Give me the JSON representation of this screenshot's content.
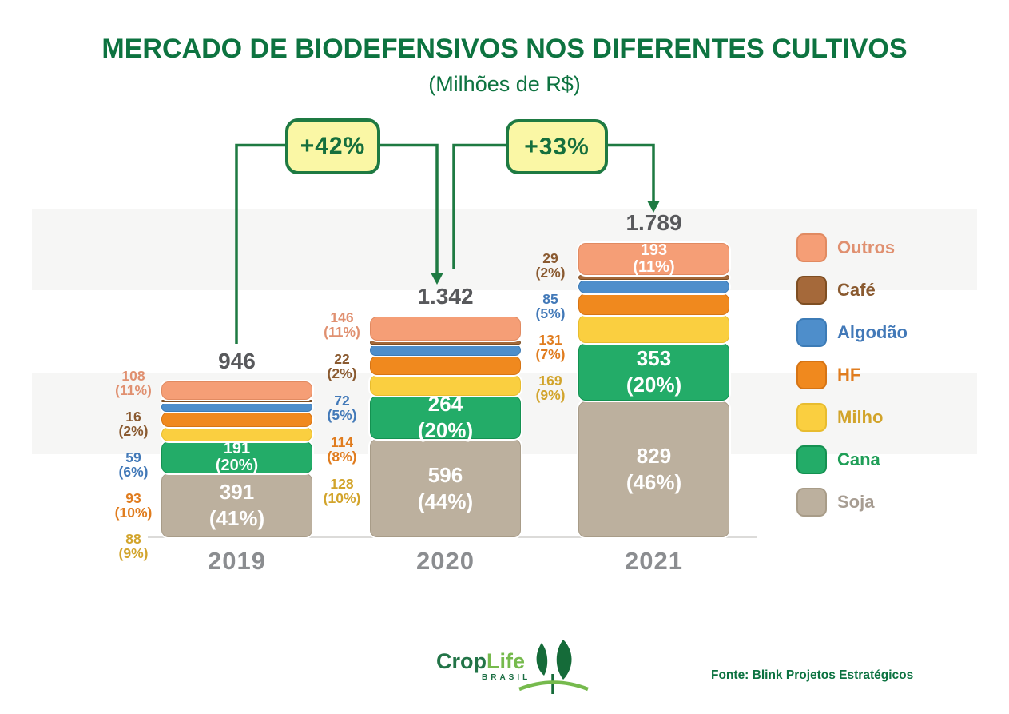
{
  "header": {
    "title": "MERCADO DE BIODEFENSIVOS NOS DIFERENTES CULTIVOS",
    "subtitle": "(Milhões de R$)"
  },
  "chart_data": {
    "type": "bar",
    "subtype": "stacked-bar",
    "title": "MERCADO DE BIODEFENSIVOS NOS DIFERENTES CULTIVOS",
    "unit": "Milhões de R$",
    "categories": [
      "2019",
      "2020",
      "2021"
    ],
    "totals": [
      946,
      1342,
      1789
    ],
    "total_labels": [
      "946",
      "1.342",
      "1.789"
    ],
    "growth": [
      {
        "from": "2019",
        "to": "2020",
        "label": "+42%"
      },
      {
        "from": "2020",
        "to": "2021",
        "label": "+33%"
      }
    ],
    "series": [
      {
        "name": "Soja",
        "values": [
          391,
          596,
          829
        ],
        "pcts": [
          "41%",
          "44%",
          "46%"
        ]
      },
      {
        "name": "Cana",
        "values": [
          191,
          264,
          353
        ],
        "pcts": [
          "20%",
          "20%",
          "20%"
        ]
      },
      {
        "name": "Milho",
        "values": [
          88,
          128,
          169
        ],
        "pcts": [
          "9%",
          "10%",
          "9%"
        ]
      },
      {
        "name": "HF",
        "values": [
          93,
          114,
          131
        ],
        "pcts": [
          "10%",
          "8%",
          "7%"
        ]
      },
      {
        "name": "Algodão",
        "values": [
          59,
          72,
          85
        ],
        "pcts": [
          "6%",
          "5%",
          "5%"
        ]
      },
      {
        "name": "Café",
        "values": [
          16,
          22,
          29
        ],
        "pcts": [
          "2%",
          "2%",
          "2%"
        ]
      },
      {
        "name": "Outros",
        "values": [
          108,
          146,
          193
        ],
        "pcts": [
          "11%",
          "11%",
          "11%"
        ]
      }
    ],
    "bars": [
      {
        "year": "2019",
        "total_label": "946",
        "segments": [
          {
            "crop": "soja",
            "value": 391,
            "inside": [
              "391",
              "(41%)"
            ]
          },
          {
            "crop": "cana",
            "value": 191,
            "inside": [
              "191",
              "(20%)"
            ]
          },
          {
            "crop": "milho",
            "value": 88
          },
          {
            "crop": "hf",
            "value": 93
          },
          {
            "crop": "algodao",
            "value": 59
          },
          {
            "crop": "cafe",
            "value": 16
          },
          {
            "crop": "outros",
            "value": 108
          }
        ],
        "side_labels": [
          {
            "crop": "outros",
            "value": "108",
            "pct": "(11%)"
          },
          {
            "crop": "cafe",
            "value": "16",
            "pct": "(2%)"
          },
          {
            "crop": "algodao",
            "value": "59",
            "pct": "(6%)"
          },
          {
            "crop": "hf",
            "value": "93",
            "pct": "(10%)"
          },
          {
            "crop": "milho",
            "value": "88",
            "pct": "(9%)"
          }
        ]
      },
      {
        "year": "2020",
        "total_label": "1.342",
        "segments": [
          {
            "crop": "soja",
            "value": 596,
            "inside": [
              "596",
              "(44%)"
            ]
          },
          {
            "crop": "cana",
            "value": 264,
            "inside": [
              "264",
              "(20%)"
            ]
          },
          {
            "crop": "milho",
            "value": 128
          },
          {
            "crop": "hf",
            "value": 114
          },
          {
            "crop": "algodao",
            "value": 72
          },
          {
            "crop": "cafe",
            "value": 22
          },
          {
            "crop": "outros",
            "value": 146
          }
        ],
        "side_labels": [
          {
            "crop": "outros",
            "value": "146",
            "pct": "(11%)"
          },
          {
            "crop": "cafe",
            "value": "22",
            "pct": "(2%)"
          },
          {
            "crop": "algodao",
            "value": "72",
            "pct": "(5%)"
          },
          {
            "crop": "hf",
            "value": "114",
            "pct": "(8%)"
          },
          {
            "crop": "milho",
            "value": "128",
            "pct": "(10%)"
          }
        ]
      },
      {
        "year": "2021",
        "total_label": "1.789",
        "segments": [
          {
            "crop": "soja",
            "value": 829,
            "inside": [
              "829",
              "(46%)"
            ]
          },
          {
            "crop": "cana",
            "value": 353,
            "inside": [
              "353",
              "(20%)"
            ]
          },
          {
            "crop": "milho",
            "value": 169
          },
          {
            "crop": "hf",
            "value": 131
          },
          {
            "crop": "algodao",
            "value": 85
          },
          {
            "crop": "cafe",
            "value": 29
          },
          {
            "crop": "outros",
            "value": 193,
            "inside": [
              "193",
              "(11%)"
            ]
          }
        ],
        "side_labels": [
          {
            "crop": "cafe",
            "value": "29",
            "pct": "(2%)"
          },
          {
            "crop": "algodao",
            "value": "85",
            "pct": "(5%)"
          },
          {
            "crop": "hf",
            "value": "131",
            "pct": "(7%)"
          },
          {
            "crop": "milho",
            "value": "169",
            "pct": "(9%)"
          }
        ]
      }
    ],
    "legend_position": "right",
    "grid": "horizontal-stripes"
  },
  "legend": {
    "items": [
      {
        "label": "Outros",
        "crop": "outros"
      },
      {
        "label": "Café",
        "crop": "cafe"
      },
      {
        "label": "Algodão",
        "crop": "algodao"
      },
      {
        "label": "HF",
        "crop": "hf"
      },
      {
        "label": "Milho",
        "crop": "milho"
      },
      {
        "label": "Cana",
        "crop": "cana"
      },
      {
        "label": "Soja",
        "crop": "soja"
      }
    ]
  },
  "colors": {
    "outros": {
      "fill": "#F59E76",
      "border": "#E18A61",
      "text": "#E09070"
    },
    "cafe": {
      "fill": "#A5693A",
      "border": "#7E4E22",
      "text": "#8A5A30"
    },
    "algodao": {
      "fill": "#4E8ECB",
      "border": "#3C7BB6",
      "text": "#4279B8"
    },
    "hf": {
      "fill": "#F0891E",
      "border": "#D67414",
      "text": "#E07C1E"
    },
    "milho": {
      "fill": "#FACF40",
      "border": "#E8BC2E",
      "text": "#D2A42B"
    },
    "cana": {
      "fill": "#23AC68",
      "border": "#149151",
      "text": "#1F9E57"
    },
    "soja": {
      "fill": "#BCB09E",
      "border": "#A89C88",
      "text": "#A79D92"
    }
  },
  "theme": {
    "title_green": "#0D7340",
    "line_green": "#1E7A42",
    "badge_bg": "#FAF7A5",
    "badge_text": "#156F3D",
    "total_text": "#58595C",
    "year_text": "#8B8D90",
    "stripe": "#F6F6F5"
  },
  "footer": {
    "logo": {
      "part1": "Crop",
      "part2": "Life",
      "sub": "BRASIL"
    },
    "source": "Fonte: Blink Projetos Estratégicos"
  }
}
